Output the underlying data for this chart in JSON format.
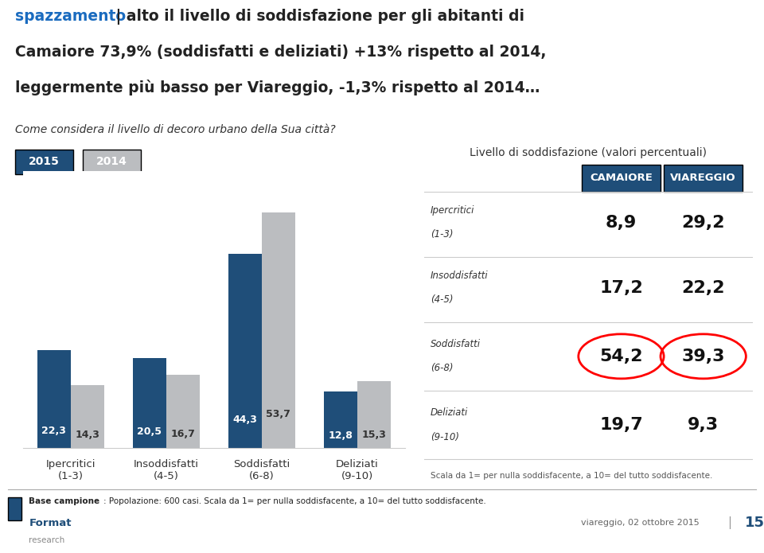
{
  "title_blue": "spazzamento",
  "title_rest1": " | alto il livello di soddisfazione per gli abitanti di",
  "title_line2": "Camaiore 73,9% (soddisfatti e deliziati) +13% rispetto al 2014,",
  "title_line3": "leggermente più basso per Viareggio, -1,3% rispetto al 2014…",
  "subtitle": "Come considera il livello di decoro urbano della Sua città?",
  "legend_2015": "2015",
  "legend_2014": "2014",
  "categories": [
    "Ipercritici\n(1-3)",
    "Insoddisfatti\n(4-5)",
    "Soddisfatti\n(6-8)",
    "Deliziati\n(9-10)"
  ],
  "values_2015": [
    22.3,
    20.5,
    44.3,
    12.8
  ],
  "values_2014": [
    14.3,
    16.7,
    53.7,
    15.3
  ],
  "color_2015": "#1F4E79",
  "color_2014": "#BBBDC0",
  "bar_width": 0.35,
  "table_title": "Livello di soddisfazione (valori percentuali)",
  "col_headers": [
    "CAMAIORE",
    "VIAREGGIO"
  ],
  "col_header_bg": "#1F4E79",
  "col_header_fg": "#FFFFFF",
  "row_labels_line1": [
    "Ipercritici",
    "Insoddisfatti",
    "Soddisfatti",
    "Deliziati"
  ],
  "row_labels_line2": [
    "(1-3)",
    "(4-5)",
    "(6-8)",
    "(9-10)"
  ],
  "camaiore_vals": [
    "8,9",
    "17,2",
    "54,2",
    "19,7"
  ],
  "viareggio_vals": [
    "29,2",
    "22,2",
    "39,3",
    "9,3"
  ],
  "circled_rows": [
    2
  ],
  "footer_date": "viareggio, 02 ottobre 2015",
  "footer_page": "15",
  "scala_note": "Scala da 1= per nulla soddisfacente, a 10= del tutto soddisfacente.",
  "background_color": "#FFFFFF",
  "chart_border_color": "#CCCCCC",
  "divider_color": "#CCCCCC"
}
